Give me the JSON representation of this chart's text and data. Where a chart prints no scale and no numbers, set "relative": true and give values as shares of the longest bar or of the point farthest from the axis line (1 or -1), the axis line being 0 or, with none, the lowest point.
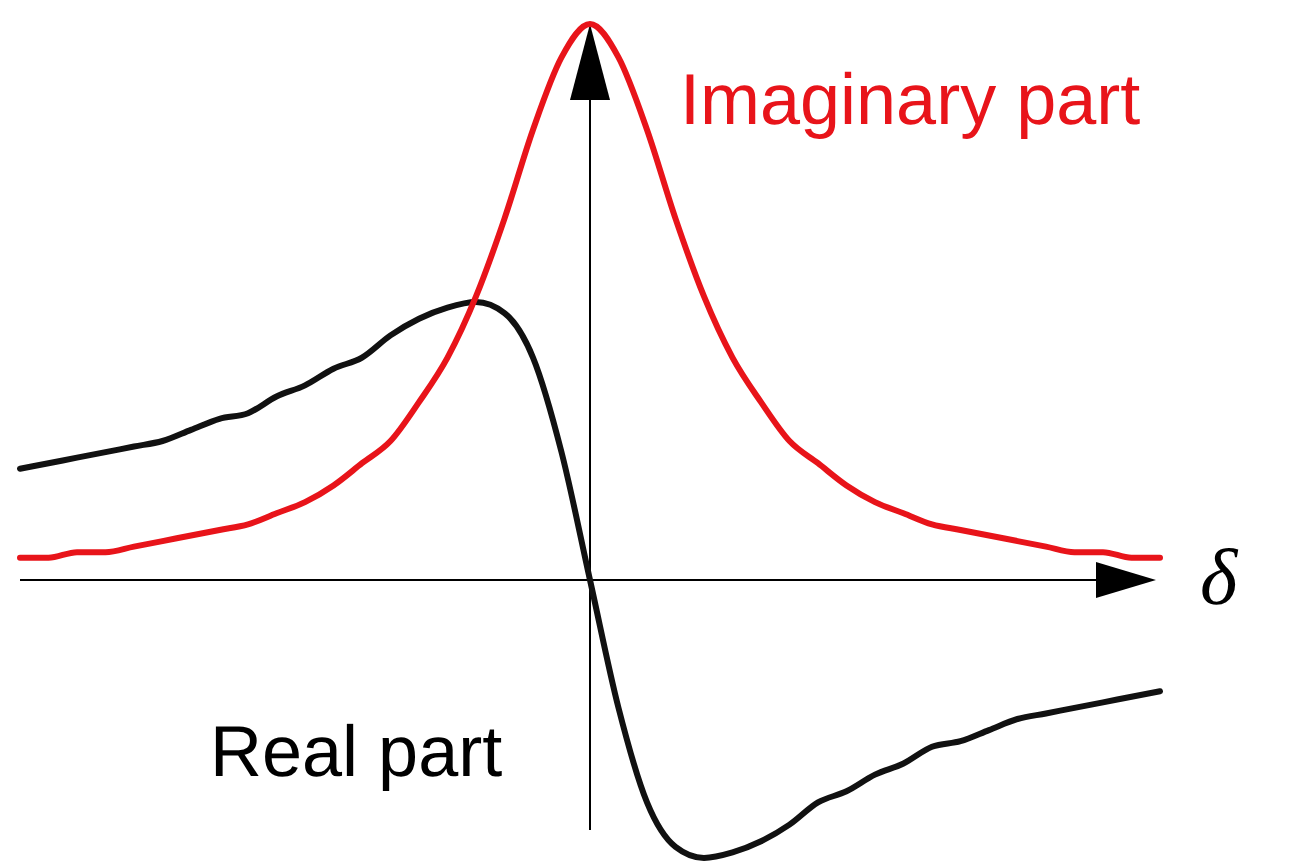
{
  "chart_data": {
    "type": "line",
    "relative": true,
    "xlabel": "δ",
    "legend": false,
    "marker": "none",
    "line_style": "solid",
    "categories": [
      null,
      null,
      null,
      null,
      null,
      null,
      null,
      null,
      null,
      null,
      null,
      null,
      null,
      null,
      null,
      null,
      null,
      null,
      null,
      null,
      null,
      null,
      null,
      null,
      null,
      null,
      null,
      null,
      null,
      null,
      null,
      null,
      null,
      null,
      null,
      null,
      null,
      null,
      null,
      null,
      null
    ],
    "series": [
      {
        "name": "Real part",
        "color": "#111111",
        "values": [
          0.2,
          0.21,
          0.22,
          0.23,
          0.24,
          0.25,
          0.27,
          0.29,
          0.3,
          0.33,
          0.35,
          0.38,
          0.4,
          0.44,
          0.47,
          0.49,
          0.5,
          0.48,
          0.4,
          0.23,
          0,
          -0.23,
          -0.4,
          -0.48,
          -0.5,
          -0.49,
          -0.47,
          -0.44,
          -0.4,
          -0.38,
          -0.35,
          -0.33,
          -0.3,
          -0.29,
          -0.27,
          -0.25,
          -0.24,
          -0.23,
          -0.22,
          -0.21,
          -0.2
        ]
      },
      {
        "name": "Imaginary part",
        "color": "#e8141a",
        "values": [
          0.04,
          0.04,
          0.05,
          0.05,
          0.06,
          0.07,
          0.08,
          0.09,
          0.1,
          0.12,
          0.14,
          0.17,
          0.21,
          0.25,
          0.32,
          0.4,
          0.51,
          0.65,
          0.81,
          0.94,
          1,
          0.94,
          0.81,
          0.65,
          0.51,
          0.4,
          0.32,
          0.25,
          0.21,
          0.17,
          0.14,
          0.12,
          0.1,
          0.09,
          0.08,
          0.07,
          0.06,
          0.05,
          0.05,
          0.04,
          0.04
        ]
      }
    ]
  }
}
